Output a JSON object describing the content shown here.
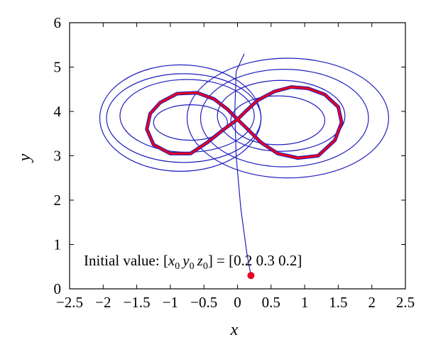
{
  "chart_data": {
    "type": "line",
    "title": "",
    "xlabel": "x",
    "ylabel": "y",
    "xlim": [
      -2.5,
      2.5
    ],
    "ylim": [
      0,
      6
    ],
    "xticks": [
      "−2.5",
      "−2",
      "−1.5",
      "−1",
      "−0.5",
      "0",
      "0.5",
      "1",
      "1.5",
      "2",
      "2.5"
    ],
    "yticks": [
      "0",
      "1",
      "2",
      "3",
      "4",
      "5",
      "6"
    ],
    "grid": false,
    "legend": "none",
    "annotation": {
      "prefix": "Initial value: [",
      "v1": "x",
      "v2": "y",
      "v3": "z",
      "sub": "0",
      "suffix": "] = [0.2  0.3  0.2]"
    },
    "initial_point": {
      "x": 0.2,
      "y": 0.3
    },
    "transient": {
      "color": "#1f1fbf",
      "start": {
        "x": 0.2,
        "y": 0.3
      },
      "approach": [
        [
          0.2,
          0.3
        ],
        [
          0.14,
          0.8
        ],
        [
          0.05,
          1.8
        ],
        [
          -0.02,
          3.0
        ],
        [
          -0.04,
          4.0
        ],
        [
          -0.02,
          4.9
        ],
        [
          0.1,
          5.3
        ]
      ],
      "lobes": [
        {
          "cx": 0.65,
          "cy": 3.9,
          "rx": 0.95,
          "ry": 0.8
        },
        {
          "cx": -0.75,
          "cy": 3.9,
          "rx": 1.0,
          "ry": 0.82
        },
        {
          "cx": 0.7,
          "cy": 3.85,
          "rx": 1.25,
          "ry": 1.1
        },
        {
          "cx": -0.8,
          "cy": 3.85,
          "rx": 1.15,
          "ry": 1.0
        },
        {
          "cx": 0.75,
          "cy": 3.85,
          "rx": 1.5,
          "ry": 1.35
        },
        {
          "cx": -0.85,
          "cy": 3.85,
          "rx": 1.2,
          "ry": 1.2
        },
        {
          "cx": 0.6,
          "cy": 3.8,
          "rx": 0.7,
          "ry": 0.55
        },
        {
          "cx": -0.7,
          "cy": 3.75,
          "rx": 0.55,
          "ry": 0.4
        }
      ]
    },
    "limit_cycle": {
      "color": "#e8001c",
      "x": [
        0.0,
        0.12,
        0.3,
        0.55,
        0.8,
        1.05,
        1.3,
        1.5,
        1.55,
        1.45,
        1.2,
        0.9,
        0.6,
        0.35,
        0.15,
        0.0,
        -0.15,
        -0.35,
        -0.6,
        -0.9,
        -1.15,
        -1.3,
        -1.35,
        -1.25,
        -1.0,
        -0.7,
        -0.45,
        -0.2,
        0.0
      ],
      "y": [
        3.82,
        4.0,
        4.25,
        4.45,
        4.55,
        4.52,
        4.38,
        4.1,
        3.75,
        3.35,
        3.0,
        2.95,
        3.05,
        3.3,
        3.6,
        3.82,
        4.05,
        4.28,
        4.42,
        4.4,
        4.2,
        3.95,
        3.6,
        3.25,
        3.05,
        3.05,
        3.3,
        3.6,
        3.82
      ]
    }
  }
}
